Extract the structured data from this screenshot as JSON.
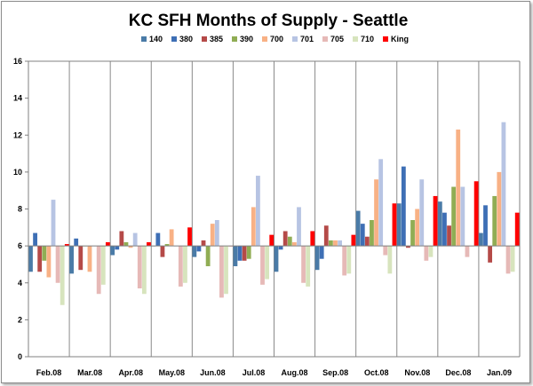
{
  "chart_data": {
    "type": "bar",
    "title": "KC SFH Months of Supply - Seattle",
    "xlabel": "",
    "ylabel": "",
    "ylim": [
      0,
      16
    ],
    "yticks": [
      0,
      2,
      4,
      6,
      8,
      10,
      12,
      14,
      16
    ],
    "grid": "vertical category separators",
    "legend_position": "top",
    "baseline": 6,
    "categories": [
      "Feb.08",
      "Mar.08",
      "Apr.08",
      "May.08",
      "Jun.08",
      "Jul.08",
      "Aug.08",
      "Sep.08",
      "Oct.08",
      "Nov.08",
      "Dec.08",
      "Jan.09"
    ],
    "series": [
      {
        "name": "140",
        "color": "#4a7ba7",
        "values": [
          4.6,
          4.5,
          5.5,
          6.0,
          5.4,
          4.9,
          4.6,
          4.7,
          7.9,
          8.3,
          8.4,
          6.7
        ]
      },
      {
        "name": "380",
        "color": "#3e6fb5",
        "values": [
          6.7,
          6.4,
          5.8,
          6.7,
          5.7,
          5.2,
          5.8,
          5.3,
          7.2,
          10.3,
          7.8,
          8.2
        ]
      },
      {
        "name": "385",
        "color": "#b54a48",
        "values": [
          4.6,
          4.7,
          6.8,
          5.4,
          6.3,
          5.2,
          6.8,
          7.1,
          6.5,
          5.9,
          7.1,
          5.1
        ]
      },
      {
        "name": "390",
        "color": "#90ad54",
        "values": [
          5.2,
          6.0,
          6.2,
          6.1,
          4.9,
          5.3,
          6.5,
          6.3,
          7.4,
          7.4,
          9.2,
          8.7
        ]
      },
      {
        "name": "700",
        "color": "#f8b185",
        "values": [
          4.3,
          4.6,
          5.9,
          6.9,
          7.2,
          8.1,
          6.2,
          6.3,
          9.6,
          8.0,
          12.3,
          10.0
        ]
      },
      {
        "name": "701",
        "color": "#b7c4e3",
        "values": [
          8.5,
          6.0,
          6.7,
          6.0,
          7.4,
          9.8,
          8.1,
          6.3,
          10.7,
          9.6,
          9.2,
          12.7
        ]
      },
      {
        "name": "705",
        "color": "#e6b9b7",
        "values": [
          4.0,
          3.4,
          3.7,
          3.8,
          3.2,
          3.9,
          4.0,
          4.4,
          5.5,
          5.2,
          5.4,
          4.5
        ]
      },
      {
        "name": "710",
        "color": "#d7e4bd",
        "values": [
          2.8,
          3.9,
          3.4,
          4.0,
          3.4,
          4.2,
          3.8,
          4.5,
          4.5,
          5.4,
          6.0,
          4.6
        ]
      },
      {
        "name": "King",
        "color": "#ff0000",
        "values": [
          6.1,
          6.2,
          6.2,
          7.0,
          6.0,
          6.6,
          6.8,
          6.6,
          8.3,
          8.7,
          9.5,
          7.8
        ]
      }
    ]
  }
}
